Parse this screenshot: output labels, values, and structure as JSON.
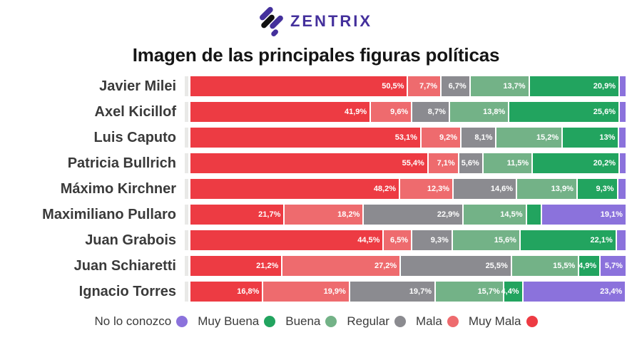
{
  "logo": {
    "text": "ZENTRIX",
    "brand_color": "#44309c",
    "icon": "zentrix-diagonal-stripes-icon"
  },
  "title": "Imagen de las principales figuras políticas",
  "chart_data": {
    "type": "bar",
    "subtype": "horizontal-stacked-100",
    "title": "Imagen de las principales figuras políticas",
    "unit": "%",
    "xlim": [
      0,
      100
    ],
    "grid": false,
    "legend_position": "bottom",
    "series_order": [
      "Muy Mala",
      "Mala",
      "Regular",
      "Buena",
      "Muy Buena",
      "No lo conozco"
    ],
    "colors": {
      "Muy Mala": "#ed3b43",
      "Mala": "#ee6b6e",
      "Regular": "#8b8b90",
      "Buena": "#73b287",
      "Muy Buena": "#22a45f",
      "No lo conozco": "#8b72dc"
    },
    "rows": [
      {
        "name": "Javier Milei",
        "values": [
          50.5,
          7.7,
          6.7,
          13.7,
          20.9,
          0.5
        ],
        "labels": [
          "50,5%",
          "7,7%",
          "6,7%",
          "13,7%",
          "20,9%",
          ""
        ]
      },
      {
        "name": "Axel Kicillof",
        "values": [
          41.9,
          9.6,
          8.7,
          13.8,
          25.6,
          0.4
        ],
        "labels": [
          "41,9%",
          "9,6%",
          "8,7%",
          "13,8%",
          "25,6%",
          ""
        ]
      },
      {
        "name": "Luis Caputo",
        "values": [
          53.1,
          9.2,
          8.1,
          15.2,
          13.0,
          1.4
        ],
        "labels": [
          "53,1%",
          "9,2%",
          "8,1%",
          "15,2%",
          "13%",
          ""
        ]
      },
      {
        "name": "Patricia Bullrich",
        "values": [
          55.4,
          7.1,
          5.6,
          11.5,
          20.2,
          0.2
        ],
        "labels": [
          "55,4%",
          "7,1%",
          "5,6%",
          "11,5%",
          "20,2%",
          ""
        ]
      },
      {
        "name": "Máximo Kirchner",
        "values": [
          48.2,
          12.3,
          14.6,
          13.9,
          9.3,
          1.7
        ],
        "labels": [
          "48,2%",
          "12,3%",
          "14,6%",
          "13,9%",
          "9,3%",
          ""
        ]
      },
      {
        "name": "Maximiliano Pullaro",
        "values": [
          21.7,
          18.2,
          22.9,
          14.5,
          3.6,
          19.1
        ],
        "labels": [
          "21,7%",
          "18,2%",
          "22,9%",
          "14,5%",
          "",
          "19,1%"
        ]
      },
      {
        "name": "Juan Grabois",
        "values": [
          44.5,
          6.5,
          9.3,
          15.6,
          22.1,
          2.0
        ],
        "labels": [
          "44,5%",
          "6,5%",
          "9,3%",
          "15,6%",
          "22,1%",
          ""
        ]
      },
      {
        "name": "Juan Schiaretti",
        "values": [
          21.2,
          27.2,
          25.5,
          15.5,
          4.9,
          5.7
        ],
        "labels": [
          "21,2%",
          "27,2%",
          "25,5%",
          "15,5%",
          "4,9%",
          "5,7%"
        ]
      },
      {
        "name": "Ignacio Torres",
        "values": [
          16.8,
          19.9,
          19.7,
          15.7,
          4.4,
          23.4
        ],
        "labels": [
          "16,8%",
          "19,9%",
          "19,7%",
          "15,7%",
          "4,4%",
          "23,4%"
        ]
      }
    ],
    "legend": [
      {
        "label": "No lo conozco",
        "color": "#8b72dc"
      },
      {
        "label": "Muy Buena",
        "color": "#22a45f"
      },
      {
        "label": "Buena",
        "color": "#73b287"
      },
      {
        "label": "Regular",
        "color": "#8b8b90"
      },
      {
        "label": "Mala",
        "color": "#ee6b6e"
      },
      {
        "label": "Muy Mala",
        "color": "#ed3b43"
      }
    ]
  }
}
